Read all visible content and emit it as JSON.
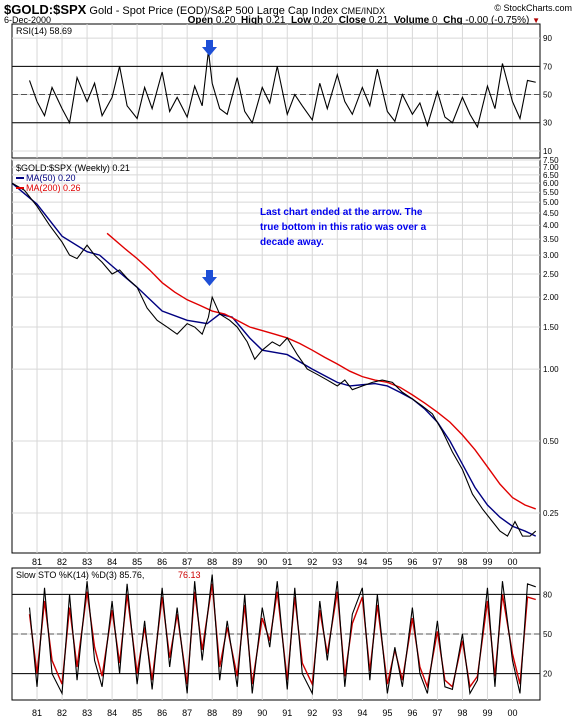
{
  "header": {
    "symbol": "$GOLD:$SPX",
    "title": "Gold - Spot Price (EOD)/S&P 500 Large Cap Index",
    "exchange": "CME/INDX",
    "date": "6-Dec-2000",
    "credit": "© StockCharts.com",
    "open_label": "Open",
    "open": "0.20",
    "high_label": "High",
    "high": "0.21",
    "low_label": "Low",
    "low": "0.20",
    "close_label": "Close",
    "close": "0.21",
    "volume_label": "Volume",
    "volume": "0",
    "chg_label": "Chg",
    "chg": "-0.00 (-0.75%)",
    "chg_arrow": "▼"
  },
  "colors": {
    "price": "#000000",
    "ma50": "#000080",
    "ma200": "#e00000",
    "pct_d": "#cc0000",
    "annotation": "#0000ee",
    "arrow": "#1e4fd6",
    "grid": "#d8d8d8"
  },
  "annotation": {
    "lines": [
      "Last chart ended at the arrow. The",
      "true bottom in this ratio was over a",
      "decade away."
    ]
  },
  "x_axis": {
    "labels": [
      "81",
      "82",
      "83",
      "84",
      "85",
      "86",
      "87",
      "88",
      "89",
      "90",
      "91",
      "92",
      "93",
      "94",
      "95",
      "96",
      "97",
      "98",
      "99",
      "00"
    ]
  },
  "chart_data": [
    {
      "type": "line",
      "title": "RSI(14) 58.69",
      "x": [
        1980.7,
        1981.0,
        1981.3,
        1981.6,
        1982.0,
        1982.3,
        1982.6,
        1983.0,
        1983.3,
        1983.6,
        1984.0,
        1984.3,
        1984.6,
        1985.0,
        1985.3,
        1985.6,
        1986.0,
        1986.3,
        1986.6,
        1987.0,
        1987.3,
        1987.6,
        1987.85,
        1988.0,
        1988.3,
        1988.6,
        1989.0,
        1989.3,
        1989.6,
        1990.0,
        1990.3,
        1990.6,
        1991.0,
        1991.3,
        1991.6,
        1992.0,
        1992.3,
        1992.6,
        1993.0,
        1993.3,
        1993.6,
        1994.0,
        1994.3,
        1994.6,
        1995.0,
        1995.3,
        1995.6,
        1996.0,
        1996.3,
        1996.6,
        1997.0,
        1997.3,
        1997.6,
        1998.0,
        1998.3,
        1998.6,
        1999.0,
        1999.3,
        1999.6,
        2000.0,
        2000.3,
        2000.6,
        2000.93
      ],
      "values": [
        60,
        45,
        35,
        55,
        40,
        30,
        62,
        45,
        58,
        35,
        48,
        70,
        42,
        33,
        55,
        40,
        66,
        38,
        48,
        34,
        56,
        42,
        81,
        58,
        40,
        36,
        62,
        38,
        30,
        55,
        44,
        70,
        36,
        50,
        42,
        32,
        58,
        40,
        64,
        45,
        36,
        55,
        42,
        68,
        38,
        31,
        50,
        36,
        44,
        28,
        52,
        34,
        30,
        48,
        36,
        27,
        56,
        40,
        72,
        45,
        33,
        60,
        58.69
      ],
      "ylim": [
        5,
        100
      ],
      "yticks": [
        10,
        30,
        50,
        70,
        90
      ],
      "ref_lines": [
        30,
        50,
        70
      ]
    },
    {
      "type": "line",
      "title": "$GOLD:$SPX (Weekly) 0.21",
      "scale": "log",
      "x": [
        1980.0,
        1980.5,
        1981.0,
        1981.5,
        1982.0,
        1982.3,
        1982.6,
        1983.0,
        1983.3,
        1983.6,
        1984.0,
        1984.3,
        1984.6,
        1985.0,
        1985.4,
        1985.8,
        1986.2,
        1986.6,
        1987.0,
        1987.3,
        1987.6,
        1987.85,
        1988.0,
        1988.3,
        1988.7,
        1989.0,
        1989.4,
        1989.7,
        1990.0,
        1990.4,
        1990.7,
        1991.0,
        1991.4,
        1991.8,
        1992.2,
        1992.6,
        1993.0,
        1993.3,
        1993.6,
        1994.0,
        1994.4,
        1994.8,
        1995.2,
        1995.6,
        1996.0,
        1996.4,
        1996.8,
        1997.2,
        1997.6,
        1998.0,
        1998.4,
        1998.8,
        1999.2,
        1999.5,
        1999.8,
        2000.1,
        2000.4,
        2000.7,
        2000.93
      ],
      "values": [
        6.0,
        5.6,
        4.8,
        4.0,
        3.4,
        3.0,
        2.9,
        3.3,
        3.0,
        2.8,
        2.5,
        2.6,
        2.4,
        2.2,
        1.8,
        1.6,
        1.5,
        1.4,
        1.55,
        1.5,
        1.4,
        1.65,
        2.0,
        1.7,
        1.6,
        1.5,
        1.3,
        1.1,
        1.2,
        1.3,
        1.25,
        1.35,
        1.15,
        1.0,
        0.95,
        0.9,
        0.85,
        0.9,
        0.82,
        0.85,
        0.88,
        0.9,
        0.88,
        0.8,
        0.75,
        0.7,
        0.65,
        0.55,
        0.45,
        0.38,
        0.3,
        0.26,
        0.23,
        0.21,
        0.2,
        0.23,
        0.2,
        0.2,
        0.21
      ],
      "series": [
        {
          "name": "MA(50) 0.20",
          "x": [
            1980.0,
            1981.0,
            1982.0,
            1983.0,
            1983.5,
            1984.0,
            1985.0,
            1986.0,
            1987.0,
            1987.8,
            1988.3,
            1988.8,
            1989.5,
            1990.0,
            1991.0,
            1992.0,
            1993.0,
            1993.5,
            1994.0,
            1994.5,
            1995.0,
            1995.5,
            1996.0,
            1996.5,
            1997.0,
            1997.5,
            1998.0,
            1998.5,
            1999.0,
            1999.5,
            2000.0,
            2000.5,
            2000.93
          ],
          "values": [
            6.0,
            4.9,
            3.6,
            3.1,
            3.0,
            2.7,
            2.2,
            1.75,
            1.6,
            1.55,
            1.7,
            1.65,
            1.35,
            1.2,
            1.15,
            1.0,
            0.88,
            0.85,
            0.86,
            0.87,
            0.85,
            0.8,
            0.75,
            0.68,
            0.6,
            0.5,
            0.4,
            0.32,
            0.27,
            0.24,
            0.22,
            0.21,
            0.2
          ]
        },
        {
          "name": "MA(200) 0.26",
          "x": [
            1983.8,
            1984.5,
            1985.0,
            1985.5,
            1986.0,
            1986.5,
            1987.0,
            1987.5,
            1988.0,
            1988.5,
            1989.0,
            1989.5,
            1990.0,
            1990.5,
            1991.0,
            1991.5,
            1992.0,
            1992.5,
            1993.0,
            1993.5,
            1994.0,
            1994.5,
            1995.0,
            1995.5,
            1996.0,
            1996.5,
            1997.0,
            1997.5,
            1998.0,
            1998.5,
            1999.0,
            1999.5,
            2000.0,
            2000.5,
            2000.93
          ],
          "values": [
            3.7,
            3.2,
            2.9,
            2.6,
            2.3,
            2.1,
            1.95,
            1.85,
            1.75,
            1.7,
            1.6,
            1.5,
            1.45,
            1.4,
            1.35,
            1.28,
            1.2,
            1.12,
            1.05,
            0.98,
            0.93,
            0.9,
            0.88,
            0.84,
            0.78,
            0.72,
            0.66,
            0.6,
            0.53,
            0.46,
            0.39,
            0.33,
            0.29,
            0.27,
            0.26
          ]
        }
      ],
      "ylim": [
        0.17,
        7.5
      ],
      "yticks": [
        0.25,
        0.5,
        1.0,
        1.5,
        2.0,
        2.5,
        3.0,
        3.5,
        4.0,
        4.5,
        5.0,
        5.5,
        6.0,
        6.5,
        7.0,
        7.5
      ],
      "ytick_labels": [
        "0.25",
        "0.50",
        "1.00",
        "1.50",
        "2.00",
        "2.50",
        "3.00",
        "3.50",
        "4.00",
        "4.50",
        "5.00",
        "5.50",
        "6.00",
        "6.50",
        "7.00",
        "7.50"
      ]
    },
    {
      "type": "line",
      "title": "Slow STO %K(14) %D(3) 85.76, 76.13",
      "k_label": "Slow STO %K(14) %D(3) 85.76,",
      "d_label": "76.13",
      "x": [
        1980.7,
        1981.0,
        1981.3,
        1981.6,
        1982.0,
        1982.3,
        1982.6,
        1983.0,
        1983.3,
        1983.6,
        1984.0,
        1984.3,
        1984.6,
        1985.0,
        1985.3,
        1985.6,
        1986.0,
        1986.3,
        1986.6,
        1987.0,
        1987.3,
        1987.6,
        1988.0,
        1988.3,
        1988.6,
        1989.0,
        1989.3,
        1989.6,
        1990.0,
        1990.3,
        1990.6,
        1991.0,
        1991.3,
        1991.6,
        1992.0,
        1992.3,
        1992.6,
        1993.0,
        1993.3,
        1993.6,
        1994.0,
        1994.3,
        1994.6,
        1995.0,
        1995.3,
        1995.6,
        1996.0,
        1996.3,
        1996.6,
        1997.0,
        1997.3,
        1997.6,
        1998.0,
        1998.3,
        1998.6,
        1999.0,
        1999.3,
        1999.6,
        2000.0,
        2000.3,
        2000.6,
        2000.93
      ],
      "values": [
        70,
        10,
        85,
        20,
        5,
        80,
        15,
        90,
        30,
        10,
        75,
        20,
        88,
        12,
        60,
        8,
        85,
        25,
        70,
        5,
        90,
        30,
        95,
        15,
        60,
        10,
        80,
        5,
        70,
        40,
        90,
        8,
        85,
        20,
        5,
        75,
        30,
        90,
        10,
        65,
        85,
        15,
        80,
        5,
        40,
        10,
        70,
        20,
        5,
        60,
        10,
        8,
        50,
        5,
        15,
        85,
        10,
        90,
        30,
        5,
        88,
        85.76
      ],
      "series": [
        {
          "name": "%D(3)",
          "x": [
            1980.7,
            1981.0,
            1981.3,
            1981.6,
            1982.0,
            1982.3,
            1982.6,
            1983.0,
            1983.3,
            1983.6,
            1984.0,
            1984.3,
            1984.6,
            1985.0,
            1985.3,
            1985.6,
            1986.0,
            1986.3,
            1986.6,
            1987.0,
            1987.3,
            1987.6,
            1988.0,
            1988.3,
            1988.6,
            1989.0,
            1989.3,
            1989.6,
            1990.0,
            1990.3,
            1990.6,
            1991.0,
            1991.3,
            1991.6,
            1992.0,
            1992.3,
            1992.6,
            1993.0,
            1993.3,
            1993.6,
            1994.0,
            1994.3,
            1994.6,
            1995.0,
            1995.3,
            1995.6,
            1996.0,
            1996.3,
            1996.6,
            1997.0,
            1997.3,
            1997.6,
            1998.0,
            1998.3,
            1998.6,
            1999.0,
            1999.3,
            1999.6,
            2000.0,
            2000.3,
            2000.6,
            2000.93
          ],
          "values": [
            65,
            20,
            75,
            30,
            12,
            70,
            25,
            82,
            40,
            18,
            68,
            28,
            80,
            20,
            55,
            15,
            78,
            32,
            65,
            12,
            82,
            38,
            88,
            25,
            55,
            18,
            72,
            12,
            62,
            45,
            82,
            15,
            78,
            28,
            12,
            68,
            35,
            82,
            18,
            58,
            78,
            22,
            72,
            12,
            38,
            15,
            62,
            25,
            10,
            52,
            15,
            10,
            45,
            10,
            18,
            75,
            18,
            80,
            35,
            12,
            78,
            76.13
          ]
        }
      ],
      "ylim": [
        0,
        100
      ],
      "yticks": [
        20,
        50,
        80
      ],
      "ref_lines": [
        20,
        50,
        80
      ]
    }
  ]
}
